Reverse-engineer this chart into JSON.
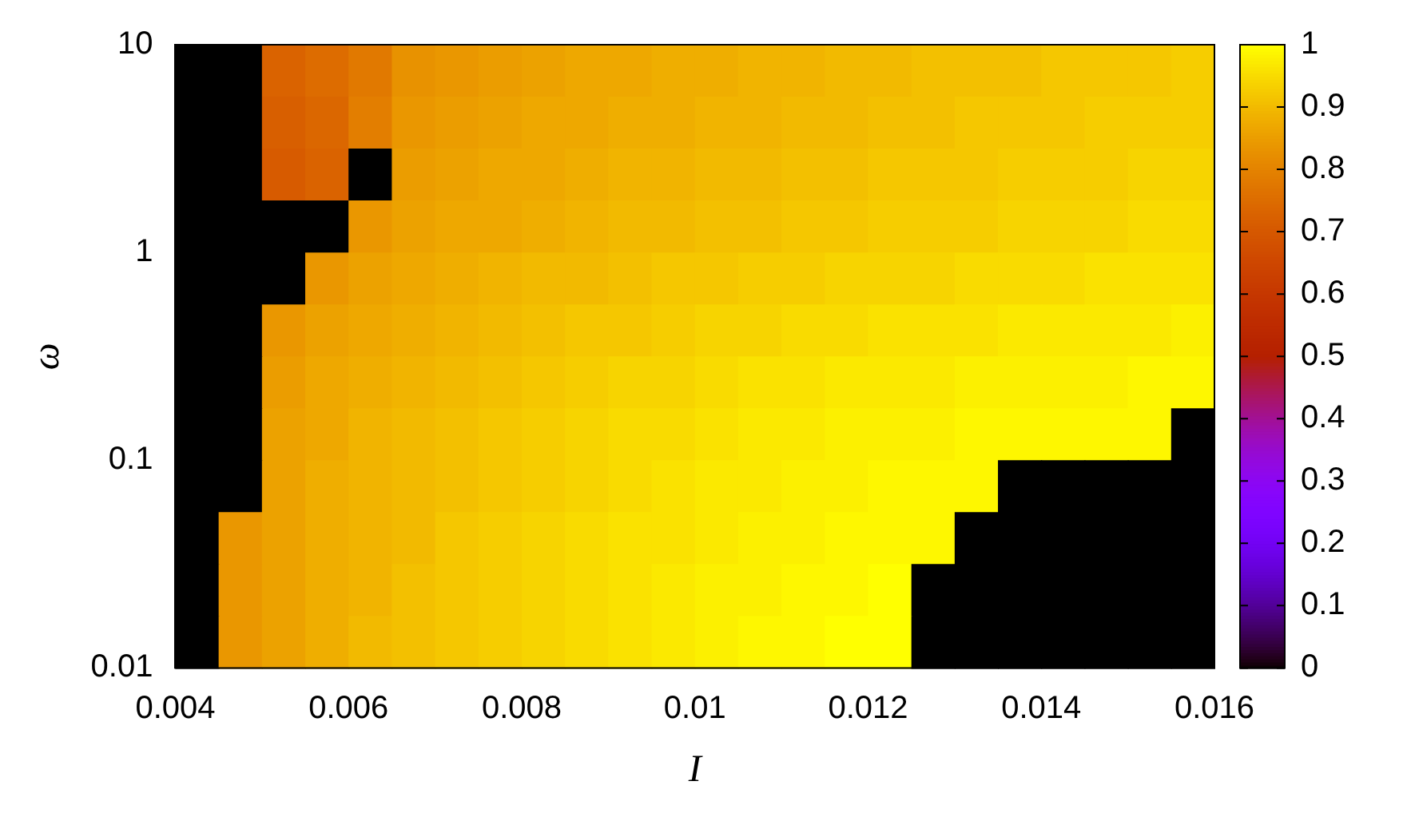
{
  "chart_data": {
    "type": "heatmap",
    "xlabel": "I",
    "ylabel": "ω",
    "x": [
      0.00425,
      0.00475,
      0.00525,
      0.00575,
      0.00625,
      0.00675,
      0.00725,
      0.00775,
      0.00825,
      0.00875,
      0.00925,
      0.00975,
      0.01025,
      0.01075,
      0.01125,
      0.01175,
      0.01225,
      0.01275,
      0.01325,
      0.01375,
      0.01425,
      0.01475,
      0.01525,
      0.01575
    ],
    "xlim": [
      0.004,
      0.016
    ],
    "xticks": [
      0.004,
      0.006,
      0.008,
      0.01,
      0.012,
      0.014,
      0.016
    ],
    "ylim": [
      0.01,
      10
    ],
    "yticks": [
      0.01,
      0.1,
      1,
      10
    ],
    "log": "y",
    "clim": [
      0,
      1
    ],
    "cticks": [
      0,
      0.1,
      0.2,
      0.3,
      0.4,
      0.5,
      0.6,
      0.7,
      0.8,
      0.9,
      1
    ],
    "cells": [
      [
        0,
        0,
        0.73,
        0.75,
        0.78,
        0.83,
        0.84,
        0.85,
        0.86,
        0.87,
        0.87,
        0.88,
        0.88,
        0.89,
        0.89,
        0.9,
        0.9,
        0.91,
        0.91,
        0.91,
        0.92,
        0.92,
        0.92,
        0.93
      ],
      [
        0,
        0,
        0.72,
        0.74,
        0.79,
        0.84,
        0.85,
        0.86,
        0.87,
        0.87,
        0.88,
        0.88,
        0.89,
        0.89,
        0.9,
        0.9,
        0.91,
        0.91,
        0.92,
        0.92,
        0.92,
        0.93,
        0.93,
        0.93
      ],
      [
        0,
        0,
        0.71,
        0.73,
        0,
        0.85,
        0.86,
        0.87,
        0.87,
        0.88,
        0.89,
        0.89,
        0.9,
        0.9,
        0.91,
        0.91,
        0.92,
        0.92,
        0.92,
        0.93,
        0.93,
        0.93,
        0.94,
        0.94
      ],
      [
        0,
        0,
        0,
        0,
        0.84,
        0.86,
        0.87,
        0.87,
        0.88,
        0.89,
        0.9,
        0.9,
        0.91,
        0.91,
        0.92,
        0.92,
        0.93,
        0.93,
        0.93,
        0.94,
        0.94,
        0.94,
        0.95,
        0.95
      ],
      [
        0,
        0,
        0,
        0.84,
        0.86,
        0.87,
        0.88,
        0.89,
        0.9,
        0.9,
        0.91,
        0.92,
        0.92,
        0.93,
        0.93,
        0.94,
        0.94,
        0.94,
        0.95,
        0.95,
        0.95,
        0.96,
        0.96,
        0.96
      ],
      [
        0,
        0,
        0.84,
        0.86,
        0.87,
        0.88,
        0.89,
        0.9,
        0.91,
        0.92,
        0.92,
        0.93,
        0.94,
        0.94,
        0.95,
        0.95,
        0.96,
        0.96,
        0.96,
        0.97,
        0.97,
        0.97,
        0.97,
        0.98
      ],
      [
        0,
        0,
        0.85,
        0.87,
        0.88,
        0.89,
        0.9,
        0.91,
        0.92,
        0.93,
        0.94,
        0.94,
        0.95,
        0.96,
        0.96,
        0.97,
        0.97,
        0.97,
        0.98,
        0.98,
        0.98,
        0.98,
        0.99,
        0.99
      ],
      [
        0,
        0,
        0.86,
        0.87,
        0.89,
        0.9,
        0.91,
        0.92,
        0.93,
        0.94,
        0.95,
        0.95,
        0.96,
        0.97,
        0.97,
        0.98,
        0.98,
        0.98,
        0.99,
        0.99,
        0.99,
        0.99,
        0.99,
        0
      ],
      [
        0,
        0,
        0.86,
        0.88,
        0.89,
        0.9,
        0.91,
        0.92,
        0.93,
        0.94,
        0.95,
        0.96,
        0.97,
        0.97,
        0.98,
        0.98,
        0.99,
        0.99,
        0.99,
        0,
        0,
        0,
        0,
        0
      ],
      [
        0,
        0.84,
        0.86,
        0.88,
        0.89,
        0.9,
        0.92,
        0.93,
        0.94,
        0.95,
        0.96,
        0.96,
        0.97,
        0.98,
        0.98,
        0.99,
        0.99,
        0.99,
        0,
        0,
        0,
        0,
        0,
        0
      ],
      [
        0,
        0.84,
        0.86,
        0.88,
        0.89,
        0.91,
        0.92,
        0.93,
        0.94,
        0.95,
        0.96,
        0.97,
        0.98,
        0.98,
        0.99,
        0.99,
        1,
        0,
        0,
        0,
        0,
        0,
        0,
        0
      ],
      [
        0,
        0.84,
        0.86,
        0.88,
        0.9,
        0.91,
        0.92,
        0.93,
        0.94,
        0.95,
        0.96,
        0.97,
        0.98,
        0.99,
        0.99,
        1,
        1,
        0,
        0,
        0,
        0,
        0,
        0,
        0
      ]
    ]
  }
}
